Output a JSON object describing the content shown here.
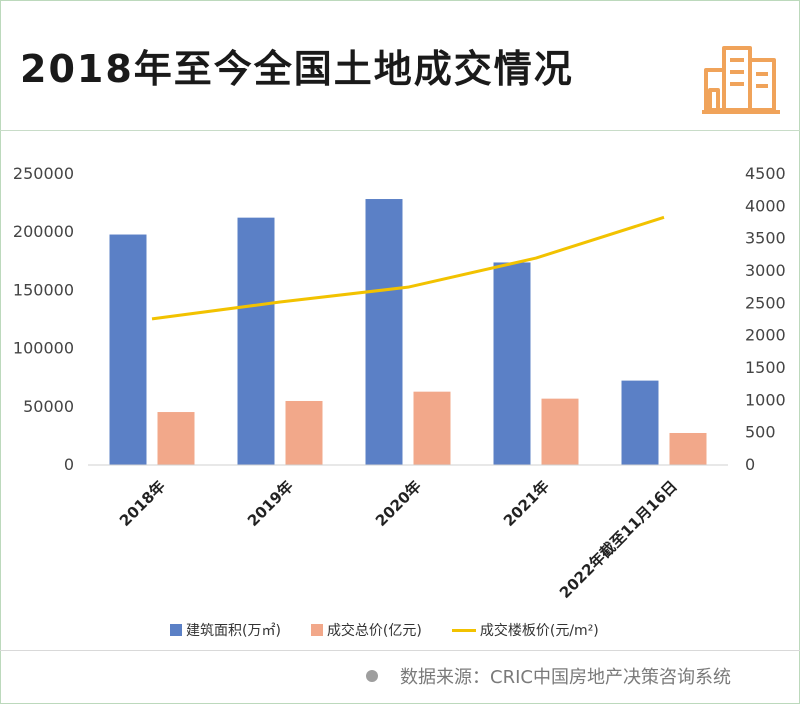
{
  "header": {
    "title": "2018年至今全国土地成交情况"
  },
  "colors": {
    "bar_area": "#5b80c6",
    "bar_total": "#f2a88a",
    "line_price": "#f2c200",
    "logo": "#f0a35a"
  },
  "icons": {
    "logo": "buildings-icon"
  },
  "chart_data": {
    "type": "bar",
    "categories": [
      "2018年",
      "2019年",
      "2020年",
      "2021年",
      "2022年截至11月16日"
    ],
    "series": [
      {
        "name": "建筑面积(万㎡)",
        "type": "bar",
        "axis": "left",
        "values": [
          198000,
          212500,
          228500,
          174000,
          72500
        ]
      },
      {
        "name": "成交总价(亿元)",
        "type": "bar",
        "axis": "left",
        "values": [
          45500,
          55000,
          63000,
          57000,
          27500
        ]
      },
      {
        "name": "成交楼板价(元/m²)",
        "type": "line",
        "axis": "right",
        "values": [
          2260,
          2520,
          2750,
          3200,
          3830
        ]
      }
    ],
    "y_left": {
      "min": 0,
      "max": 250000,
      "ticks": [
        0,
        50000,
        100000,
        150000,
        200000,
        250000
      ]
    },
    "y_right": {
      "min": 0,
      "max": 4500,
      "ticks": [
        0,
        500,
        1000,
        1500,
        2000,
        2500,
        3000,
        3500,
        4000,
        4500
      ]
    },
    "grid": false,
    "legend_position": "bottom"
  },
  "legend": {
    "items": [
      "建筑面积(万㎡)",
      "成交总价(亿元)",
      "成交楼板价(元/m²)"
    ]
  },
  "footer": {
    "source": "数据来源：CRIC中国房地产决策咨询系统"
  }
}
